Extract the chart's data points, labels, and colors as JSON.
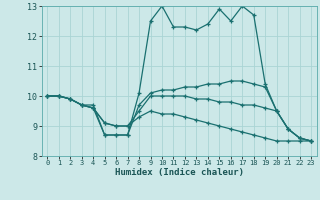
{
  "xlabel": "Humidex (Indice chaleur)",
  "ylabel": "",
  "bg_color": "#cce8e8",
  "line_color": "#1a7070",
  "grid_color": "#aad4d4",
  "xlim": [
    -0.5,
    23.5
  ],
  "ylim": [
    8,
    13
  ],
  "yticks": [
    8,
    9,
    10,
    11,
    12,
    13
  ],
  "xticks": [
    0,
    1,
    2,
    3,
    4,
    5,
    6,
    7,
    8,
    9,
    10,
    11,
    12,
    13,
    14,
    15,
    16,
    17,
    18,
    19,
    20,
    21,
    22,
    23
  ],
  "line1_x": [
    0,
    1,
    2,
    3,
    4,
    5,
    6,
    7,
    8,
    9,
    10,
    11,
    12,
    13,
    14,
    15,
    16,
    17,
    18,
    19,
    20,
    21,
    22,
    23
  ],
  "line1_y": [
    10.0,
    10.0,
    9.9,
    9.7,
    9.7,
    8.7,
    8.7,
    8.7,
    10.1,
    12.5,
    13.0,
    12.3,
    12.3,
    12.2,
    12.4,
    12.9,
    12.5,
    13.0,
    12.7,
    10.4,
    9.5,
    8.9,
    8.6,
    8.5
  ],
  "line2_x": [
    0,
    1,
    2,
    3,
    4,
    5,
    6,
    7,
    8,
    9,
    10,
    11,
    12,
    13,
    14,
    15,
    16,
    17,
    18,
    19,
    20,
    21,
    22,
    23
  ],
  "line2_y": [
    10.0,
    10.0,
    9.9,
    9.7,
    9.6,
    8.7,
    8.7,
    8.7,
    9.7,
    10.1,
    10.2,
    10.2,
    10.3,
    10.3,
    10.4,
    10.4,
    10.5,
    10.5,
    10.4,
    10.3,
    9.5,
    8.9,
    8.6,
    8.5
  ],
  "line3_x": [
    0,
    1,
    2,
    3,
    4,
    5,
    6,
    7,
    8,
    9,
    10,
    11,
    12,
    13,
    14,
    15,
    16,
    17,
    18,
    19,
    20,
    21,
    22,
    23
  ],
  "line3_y": [
    10.0,
    10.0,
    9.9,
    9.7,
    9.6,
    9.1,
    9.0,
    9.0,
    9.5,
    10.0,
    10.0,
    10.0,
    10.0,
    9.9,
    9.9,
    9.8,
    9.8,
    9.7,
    9.7,
    9.6,
    9.5,
    8.9,
    8.6,
    8.5
  ],
  "line4_x": [
    0,
    1,
    2,
    3,
    4,
    5,
    6,
    7,
    8,
    9,
    10,
    11,
    12,
    13,
    14,
    15,
    16,
    17,
    18,
    19,
    20,
    21,
    22,
    23
  ],
  "line4_y": [
    10.0,
    10.0,
    9.9,
    9.7,
    9.6,
    9.1,
    9.0,
    9.0,
    9.3,
    9.5,
    9.4,
    9.4,
    9.3,
    9.2,
    9.1,
    9.0,
    8.9,
    8.8,
    8.7,
    8.6,
    8.5,
    8.5,
    8.5,
    8.5
  ]
}
